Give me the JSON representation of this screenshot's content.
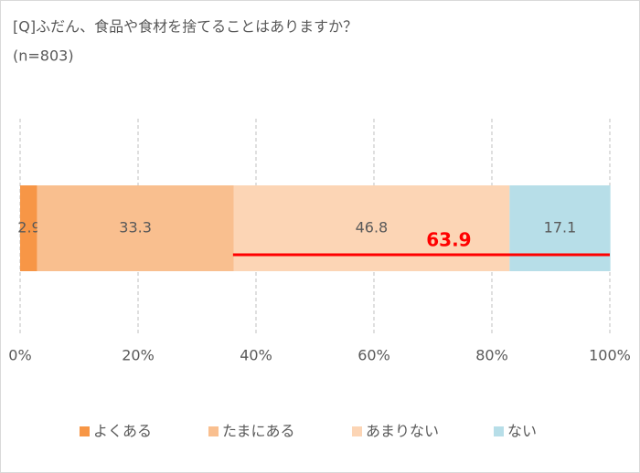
{
  "chart_data": {
    "type": "stacked-bar-horizontal",
    "title": "[Q]ふだん、食品や食材を捨てることはありますか？",
    "subtitle": "(n=803)",
    "categories": [
      null
    ],
    "series": [
      {
        "name": "よくある",
        "color": "#f79646",
        "values": [
          2.9
        ]
      },
      {
        "name": "たまにある",
        "color": "#f9bf8f",
        "values": [
          33.3
        ]
      },
      {
        "name": "あまりない",
        "color": "#fcd5b5",
        "values": [
          46.8
        ]
      },
      {
        "name": "ない",
        "color": "#b7dee8",
        "values": [
          17.1
        ]
      }
    ],
    "xlim": [
      0,
      100
    ],
    "xticks": [
      {
        "value": 0,
        "label": "0%"
      },
      {
        "value": 20,
        "label": "20%"
      },
      {
        "value": 40,
        "label": "40%"
      },
      {
        "value": 60,
        "label": "60%"
      },
      {
        "value": 80,
        "label": "80%"
      },
      {
        "value": 100,
        "label": "100%"
      }
    ],
    "grid": true,
    "legend": "bottom",
    "annotation": {
      "value": 63.9,
      "color": "#ff0000"
    }
  }
}
